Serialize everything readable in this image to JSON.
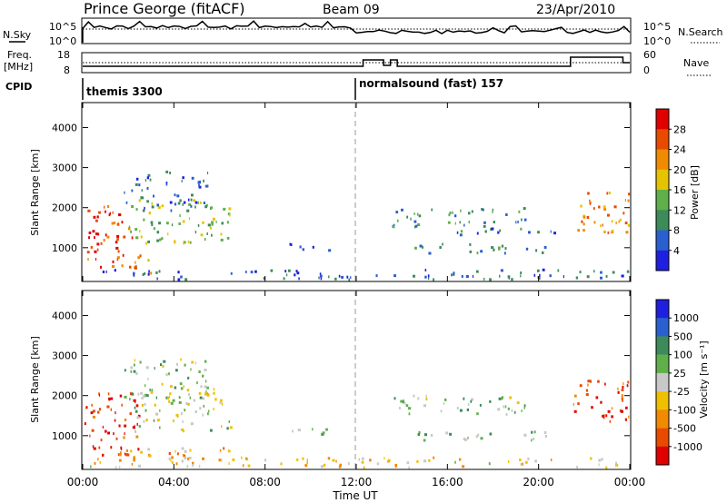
{
  "header": {
    "station": "Prince George (fitACF)",
    "beam": "Beam 09",
    "date": "23/Apr/2010"
  },
  "noise_panel": {
    "left_label": "N.Sky",
    "right_label": "N.Search",
    "left_ticks": [
      "10^5",
      "10^0"
    ],
    "right_ticks": [
      "10^5",
      "10^0"
    ]
  },
  "freq_panel": {
    "left_label_1": "Freq.",
    "left_label_2": "[MHz]",
    "right_label": "Nave",
    "left_ticks": [
      "18",
      "8"
    ],
    "right_ticks": [
      "60",
      "0"
    ]
  },
  "cpid_panel": {
    "label": "CPID",
    "modes": [
      {
        "name": "themis 3300",
        "start": "00:00"
      },
      {
        "name": "normalsound (fast) 157",
        "start": "12:00"
      }
    ]
  },
  "time_axis": {
    "label": "Time UT",
    "ticks": [
      "00:00",
      "04:00",
      "08:00",
      "12:00",
      "16:00",
      "20:00",
      "00:00"
    ]
  },
  "colors": {
    "power": [
      "#1f1fe0",
      "#2a5fd0",
      "#3d8a5a",
      "#5fb04a",
      "#e6c300",
      "#f08a00",
      "#e84a00",
      "#e00000"
    ],
    "velocity": [
      "#e00000",
      "#e84a00",
      "#f08a00",
      "#f0c000",
      "#c8c8c8",
      "#5fb04a",
      "#3d8a5a",
      "#2a5fd0",
      "#1f1fe0"
    ]
  },
  "chart_data": [
    {
      "type": "heatmap",
      "panel": "power",
      "xlabel": "Time UT",
      "ylabel": "Slant Range [km]",
      "x_range_hours": [
        0,
        24
      ],
      "ylim": [
        180,
        4600
      ],
      "y_ticks": [
        "1000",
        "2000",
        "3000",
        "4000"
      ],
      "colorbar_label": "Power [dB]",
      "colorbar_ticks": [
        "4",
        "8",
        "12",
        "16",
        "20",
        "24",
        "28"
      ],
      "scatter_regions": [
        {
          "t": [
            0.0,
            2.2
          ],
          "r": [
            500,
            2100
          ],
          "level": 0.85
        },
        {
          "t": [
            1.2,
            3.0
          ],
          "r": [
            350,
            800
          ],
          "level": 0.7
        },
        {
          "t": [
            2.0,
            6.5
          ],
          "r": [
            1100,
            2200
          ],
          "level": 0.45
        },
        {
          "t": [
            1.8,
            5.5
          ],
          "r": [
            1900,
            2900
          ],
          "level": 0.2
        },
        {
          "t": [
            9.0,
            11.0
          ],
          "r": [
            900,
            1100
          ],
          "level": 0.2
        },
        {
          "t": [
            13.5,
            19.5
          ],
          "r": [
            1500,
            2000
          ],
          "level": 0.3
        },
        {
          "t": [
            14.5,
            20.5
          ],
          "r": [
            850,
            1100
          ],
          "level": 0.3
        },
        {
          "t": [
            16.0,
            21.0
          ],
          "r": [
            1300,
            1500
          ],
          "level": 0.25
        },
        {
          "t": [
            21.5,
            24.0
          ],
          "r": [
            1300,
            2400
          ],
          "level": 0.7
        },
        {
          "t": [
            0.0,
            24.0
          ],
          "r": [
            200,
            450
          ],
          "level": 0.2
        }
      ]
    },
    {
      "type": "heatmap",
      "panel": "velocity",
      "xlabel": "Time UT",
      "ylabel": "Slant Range [km]",
      "x_range_hours": [
        0,
        24
      ],
      "ylim": [
        180,
        4600
      ],
      "y_ticks": [
        "1000",
        "2000",
        "3000",
        "4000"
      ],
      "colorbar_label": "Velocity [m s⁻¹]",
      "colorbar_ticks": [
        "-1000",
        "-500",
        "-100",
        "-25",
        "25",
        "100",
        "500",
        "1000"
      ],
      "scatter_regions": [
        {
          "t": [
            0.0,
            2.5
          ],
          "r": [
            500,
            2100
          ],
          "level": 0.1
        },
        {
          "t": [
            1.5,
            6.5
          ],
          "r": [
            350,
            700
          ],
          "level": 0.3
        },
        {
          "t": [
            2.0,
            6.5
          ],
          "r": [
            1100,
            2200
          ],
          "level": 0.55
        },
        {
          "t": [
            1.8,
            5.5
          ],
          "r": [
            1900,
            2900
          ],
          "level": 0.55
        },
        {
          "t": [
            9.0,
            11.0
          ],
          "r": [
            1000,
            1200
          ],
          "level": 0.55
        },
        {
          "t": [
            13.5,
            19.5
          ],
          "r": [
            1500,
            2000
          ],
          "level": 0.55
        },
        {
          "t": [
            14.5,
            20.5
          ],
          "r": [
            850,
            1100
          ],
          "level": 0.55
        },
        {
          "t": [
            21.5,
            24.0
          ],
          "r": [
            1300,
            2400
          ],
          "level": 0.12
        },
        {
          "t": [
            0.0,
            24.0
          ],
          "r": [
            200,
            450
          ],
          "level": 0.4
        }
      ]
    }
  ]
}
